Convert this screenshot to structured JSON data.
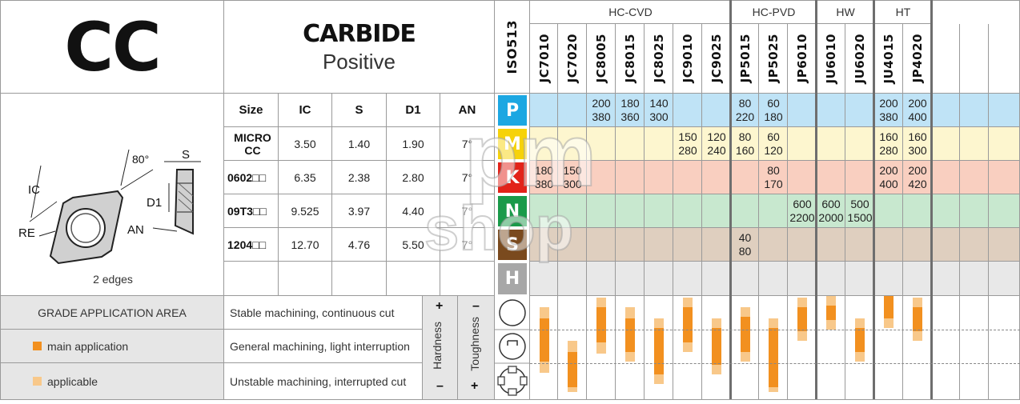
{
  "product": {
    "code": "CC",
    "material": "CARBIDE",
    "type": "Positive",
    "edges": "2 edges"
  },
  "diagram": {
    "angle": "80°",
    "labels": [
      "IC",
      "RE",
      "S",
      "D1",
      "AN"
    ]
  },
  "dims_table": {
    "headers": [
      "Size",
      "IC",
      "S",
      "D1",
      "AN"
    ],
    "rows": [
      [
        "MICRO CC",
        "3.50",
        "1.40",
        "1.90",
        "7°"
      ],
      [
        "0602□□",
        "6.35",
        "2.38",
        "2.80",
        "7°"
      ],
      [
        "09T3□□",
        "9.525",
        "3.97",
        "4.40",
        "7°"
      ],
      [
        "1204□□",
        "12.70",
        "4.76",
        "5.50",
        "7°"
      ]
    ]
  },
  "iso_label": "ISO513",
  "groups": [
    {
      "name": "HC-CVD"
    },
    {
      "name": "HC-PVD"
    },
    {
      "name": "HW"
    },
    {
      "name": "HT"
    }
  ],
  "grades": [
    "JC7010",
    "JC7020",
    "JC8005",
    "JC8015",
    "JC8025",
    "JC9010",
    "JC9025",
    "JP5015",
    "JP5025",
    "JP6010",
    "JU6010",
    "JU6020",
    "JU4015",
    "JP4020"
  ],
  "materials": [
    {
      "letter": "P",
      "color": "#1ca7e2",
      "bg": "#bfe3f6"
    },
    {
      "letter": "M",
      "color": "#f6d20a",
      "bg": "#fdf6cf"
    },
    {
      "letter": "K",
      "color": "#e2231a",
      "bg": "#f9cfc0"
    },
    {
      "letter": "N",
      "color": "#1a9a4a",
      "bg": "#c8e8cf"
    },
    {
      "letter": "S",
      "color": "#7a4a1e",
      "bg": "#dfcfbf"
    },
    {
      "letter": "H",
      "color": "#a7a7a7",
      "bg": "#e8e8e8"
    }
  ],
  "speeds": {
    "P": {
      "2": [
        "200",
        "380"
      ],
      "3": [
        "180",
        "360"
      ],
      "4": [
        "140",
        "300"
      ],
      "7": [
        "80",
        "220"
      ],
      "8": [
        "60",
        "180"
      ],
      "12": [
        "200",
        "380"
      ],
      "13": [
        "200",
        "400"
      ]
    },
    "M": {
      "5": [
        "150",
        "280"
      ],
      "6": [
        "120",
        "240"
      ],
      "7": [
        "80",
        "160"
      ],
      "8": [
        "60",
        "120"
      ],
      "12": [
        "160",
        "280"
      ],
      "13": [
        "160",
        "300"
      ]
    },
    "K": {
      "0": [
        "180",
        "380"
      ],
      "1": [
        "150",
        "300"
      ],
      "8": [
        "80",
        "170"
      ],
      "12": [
        "200",
        "400"
      ],
      "13": [
        "200",
        "420"
      ]
    },
    "N": {
      "9": [
        "600",
        "2200"
      ],
      "10": [
        "600",
        "2000"
      ],
      "11": [
        "500",
        "1500"
      ]
    },
    "S": {
      "7": [
        "40",
        "80"
      ]
    },
    "H": {}
  },
  "application": {
    "title": "GRADE APPLICATION AREA",
    "legend_main": "main application",
    "legend_applicable": "applicable",
    "conditions": [
      "Stable machining, continuous cut",
      "General machining, light interruption",
      "Unstable machining, interrupted cut"
    ],
    "hardness": "Hardness",
    "toughness": "Toughness",
    "plus": "+",
    "minus": "–",
    "main_color": "#f2901f",
    "applicable_color": "#f8c88a"
  },
  "watermark": {
    "line1": "pm",
    "line2": "shop"
  }
}
